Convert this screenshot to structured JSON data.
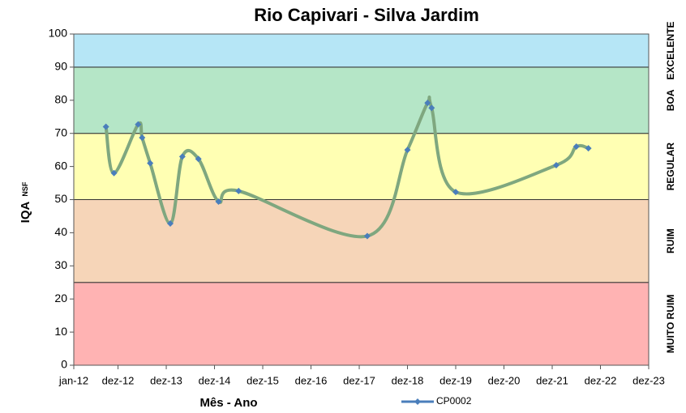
{
  "chart_data": {
    "type": "line",
    "title": "Rio Capivari - Silva Jardim",
    "x_label": "Mês - Ano",
    "y_label": "IQA",
    "y_label_sub": "NSF",
    "x": [
      "2012-09",
      "2012-11",
      "2013-05",
      "2013-06",
      "2013-08",
      "2014-01",
      "2014-04",
      "2014-08",
      "2015-01",
      "2015-06",
      "2018-02",
      "2018-12",
      "2019-05",
      "2019-06",
      "2019-12",
      "2022-01",
      "2022-06",
      "2022-09"
    ],
    "series": [
      {
        "name": "CP0002",
        "color": "#4a7ebb",
        "line_color": "#7fa77f",
        "values": [
          72,
          58,
          72.7,
          68.7,
          61,
          42.8,
          63,
          62.3,
          49.4,
          52.6,
          39,
          65,
          79.2,
          77.7,
          52.3,
          60.4,
          66,
          65.5
        ]
      }
    ],
    "xlim": [
      "2012-01",
      "2023-12"
    ],
    "xticks": [
      {
        "value": "2012-01",
        "label": "jan-12"
      },
      {
        "value": "2012-12",
        "label": "dez-12"
      },
      {
        "value": "2013-12",
        "label": "dez-13"
      },
      {
        "value": "2014-12",
        "label": "dez-14"
      },
      {
        "value": "2015-12",
        "label": "dez-15"
      },
      {
        "value": "2016-12",
        "label": "dez-16"
      },
      {
        "value": "2017-12",
        "label": "dez-17"
      },
      {
        "value": "2018-12",
        "label": "dez-18"
      },
      {
        "value": "2019-12",
        "label": "dez-19"
      },
      {
        "value": "2020-12",
        "label": "dez-20"
      },
      {
        "value": "2021-12",
        "label": "dez-21"
      },
      {
        "value": "2022-12",
        "label": "dez-22"
      },
      {
        "value": "2023-12",
        "label": "dez-23"
      }
    ],
    "ylim": [
      0,
      100
    ],
    "yticks": [
      0,
      10,
      20,
      30,
      40,
      50,
      60,
      70,
      80,
      90,
      100
    ],
    "bands": [
      {
        "label": "MUITO RUIM",
        "from": 0,
        "to": 25,
        "color": "#ffb3b3"
      },
      {
        "label": "RUIM",
        "from": 25,
        "to": 50,
        "color": "#f6d5b8"
      },
      {
        "label": "REGULAR",
        "from": 50,
        "to": 70,
        "color": "#ffffb3"
      },
      {
        "label": "BOA",
        "from": 70,
        "to": 90,
        "color": "#b5e6c7"
      },
      {
        "label": "EXCELENTE",
        "from": 90,
        "to": 100,
        "color": "#b6e6f6"
      }
    ]
  }
}
